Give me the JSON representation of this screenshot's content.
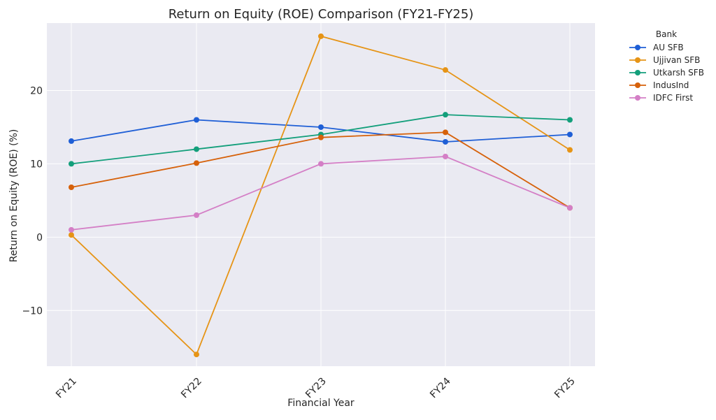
{
  "chart_data": {
    "type": "line",
    "title": "Return on Equity (ROE) Comparison (FY21-FY25)",
    "xlabel": "Financial Year",
    "ylabel": "Return on Equity (ROE) (%)",
    "categories": [
      "FY21",
      "FY22",
      "FY23",
      "FY24",
      "FY25"
    ],
    "ylim": [
      -17.6,
      29.2
    ],
    "yticks": [
      -10,
      0,
      10,
      20
    ],
    "ytick_labels": [
      "−10",
      "0",
      "10",
      "20"
    ],
    "grid": true,
    "legend": {
      "title": "Bank",
      "placement": "outside-top-right"
    },
    "series": [
      {
        "name": "AU SFB",
        "color": "#1f5fd6",
        "values": [
          13.1,
          16.0,
          15.0,
          13.0,
          14.0
        ]
      },
      {
        "name": "Ujjivan SFB",
        "color": "#e69416",
        "values": [
          0.3,
          -16.0,
          27.4,
          22.8,
          11.9
        ]
      },
      {
        "name": "Utkarsh SFB",
        "color": "#139f7b",
        "values": [
          10.0,
          12.0,
          14.0,
          16.7,
          16.0
        ]
      },
      {
        "name": "IndusInd",
        "color": "#d6610a",
        "values": [
          6.8,
          10.1,
          13.6,
          14.3,
          4.0
        ]
      },
      {
        "name": "IDFC First",
        "color": "#d47fc6",
        "values": [
          1.0,
          3.0,
          10.0,
          11.0,
          4.0
        ]
      }
    ]
  }
}
